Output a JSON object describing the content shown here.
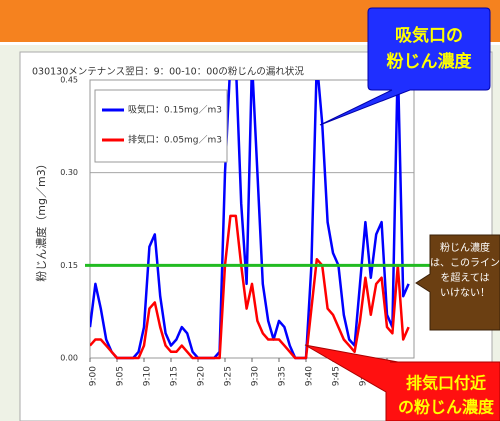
{
  "chart_data": {
    "type": "line",
    "title": "030130メンテナンス翌日：9：00-10：00の粉じんの漏れ状況",
    "y_label": "粉じん濃度（mg／m3）",
    "x": [
      0,
      1,
      2,
      3,
      4,
      5,
      6,
      7,
      8,
      9,
      10,
      11,
      12,
      13,
      14,
      15,
      16,
      17,
      18,
      19,
      20,
      21,
      22,
      23,
      24,
      25,
      26,
      27,
      28,
      29,
      30,
      31,
      32,
      33,
      34,
      35,
      36,
      37,
      38,
      39,
      40,
      41,
      42,
      43,
      44,
      45,
      46,
      47,
      48,
      49,
      50,
      51,
      52,
      53,
      54,
      55,
      56,
      57,
      58,
      59
    ],
    "series": [
      {
        "name": "吸気口：0.15mg／m3",
        "color": "#0000ff",
        "values": [
          0.05,
          0.12,
          0.08,
          0.03,
          0.01,
          0,
          0,
          0,
          0,
          0.01,
          0.05,
          0.18,
          0.2,
          0.1,
          0.04,
          0.02,
          0.03,
          0.05,
          0.04,
          0.01,
          0,
          0,
          0,
          0,
          0.01,
          0.3,
          0.48,
          0.48,
          0.25,
          0.12,
          0.48,
          0.3,
          0.12,
          0.06,
          0.03,
          0.06,
          0.05,
          0.02,
          0,
          0,
          0,
          0.15,
          0.48,
          0.38,
          0.22,
          0.17,
          0.15,
          0.07,
          0.03,
          0.02,
          0.12,
          0.22,
          0.13,
          0.2,
          0.22,
          0.07,
          0.05,
          0.48,
          0.1,
          0.12
        ]
      },
      {
        "name": "排気口：0.05mg／m3",
        "color": "#ff0000",
        "values": [
          0.02,
          0.03,
          0.03,
          0.02,
          0.01,
          0,
          0,
          0,
          0,
          0,
          0.02,
          0.08,
          0.09,
          0.05,
          0.02,
          0.01,
          0.01,
          0.02,
          0.01,
          0,
          0,
          0,
          0,
          0,
          0,
          0.15,
          0.23,
          0.23,
          0.15,
          0.08,
          0.12,
          0.06,
          0.04,
          0.03,
          0.03,
          0.03,
          0.02,
          0.01,
          0,
          0,
          0,
          0.08,
          0.16,
          0.15,
          0.08,
          0.07,
          0.05,
          0.03,
          0.02,
          0.01,
          0.06,
          0.13,
          0.07,
          0.12,
          0.13,
          0.05,
          0.04,
          0.15,
          0.03,
          0.05
        ]
      }
    ],
    "xlim": [
      0,
      60
    ],
    "xticks": [
      {
        "value": 0,
        "label": "9:00"
      },
      {
        "value": 5,
        "label": "9:05"
      },
      {
        "value": 10,
        "label": "9:10"
      },
      {
        "value": 15,
        "label": "9:15"
      },
      {
        "value": 20,
        "label": "9:20"
      },
      {
        "value": 25,
        "label": "9:25"
      },
      {
        "value": 30,
        "label": "9:30"
      },
      {
        "value": 35,
        "label": "9:35"
      },
      {
        "value": 40,
        "label": "9:40"
      },
      {
        "value": 45,
        "label": "9:45"
      },
      {
        "value": 50,
        "label": "9:50"
      },
      {
        "value": 55,
        "label": "9:55"
      }
    ],
    "ylim": [
      0,
      0.45
    ],
    "yticks": [
      {
        "value": 0,
        "label": "0.00"
      },
      {
        "value": 0.15,
        "label": "0.15"
      },
      {
        "value": 0.3,
        "label": "0.30"
      },
      {
        "value": 0.45,
        "label": "0.45"
      }
    ],
    "grid": true,
    "legend": "upper left",
    "reference_line": {
      "value": 0.15,
      "color": "#22bb22"
    },
    "annotations": [
      {
        "lines": [
          "吸気口の",
          "粉じん濃度"
        ]
      },
      {
        "lines": [
          "粉じん濃度",
          "は、このライン",
          "を超えては",
          "いけない！"
        ]
      },
      {
        "lines": [
          "排気口付近",
          "の粉じん濃度"
        ]
      }
    ]
  }
}
